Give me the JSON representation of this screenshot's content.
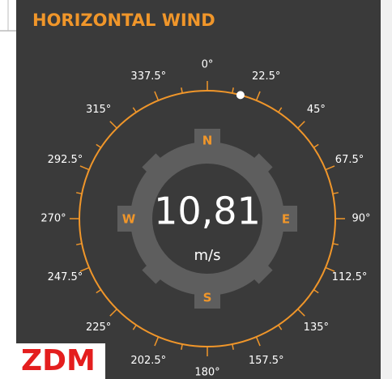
{
  "title": "HORIZONTAL WIND",
  "speed": "10,81",
  "unit": "m/s",
  "direction": 15,
  "cardinals": [
    "N",
    "E",
    "S",
    "W"
  ],
  "degree_labels": [
    "0°",
    "22.5°",
    "45°",
    "67.5°",
    "90°",
    "112.5°",
    "135°",
    "157.5°",
    "180°",
    "202.5°",
    "225°",
    "247.5°",
    "270°",
    "292.5°",
    "315°",
    "337.5°"
  ],
  "watermark": "ZDM"
}
